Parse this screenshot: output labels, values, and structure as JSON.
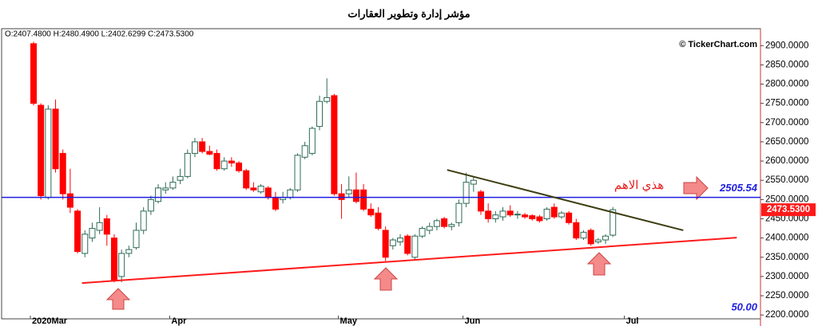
{
  "chart_data": {
    "type": "candlestick",
    "title": "مؤشر إدارة وتطوير العقارات",
    "ohlc_text": "O:2407.4800 H:2480.4900 L:2402.6299 C:2473.5300",
    "watermark": "© TickerChart.com",
    "annotation": "هذي الاهم",
    "indicator_label": "50.00",
    "up_color": "#2e6b57",
    "down_color": "#ff0000",
    "categories": [
      "2020Mar",
      null,
      null,
      null,
      null,
      null,
      null,
      null,
      null,
      null,
      null,
      null,
      null,
      null,
      null,
      null,
      null,
      null,
      null,
      "Apr",
      null,
      null,
      null,
      null,
      null,
      null,
      null,
      null,
      null,
      null,
      null,
      null,
      null,
      null,
      null,
      null,
      null,
      null,
      null,
      null,
      null,
      null,
      "May",
      null,
      null,
      null,
      null,
      null,
      null,
      null,
      null,
      null,
      null,
      null,
      null,
      null,
      null,
      null,
      null,
      "Jun",
      null,
      null,
      null,
      null,
      null,
      null,
      null,
      null,
      null,
      null,
      null,
      null,
      null,
      null,
      null,
      null,
      null,
      null,
      null,
      null,
      null,
      "Jul",
      null,
      null,
      null,
      null,
      null,
      null,
      null,
      null,
      null,
      null,
      null,
      null,
      null,
      null,
      null,
      null,
      null,
      null
    ],
    "open": [
      2905,
      2745,
      2505,
      2735,
      2620,
      2515,
      2470,
      2360,
      2400,
      2420,
      2450,
      2400,
      2300,
      2360,
      2375,
      2420,
      2470,
      2495,
      2525,
      2530,
      2550,
      2560,
      2620,
      2650,
      2625,
      2620,
      2580,
      2600,
      2595,
      2575,
      2530,
      2520,
      2530,
      2505,
      2500,
      2505,
      2525,
      2610,
      2620,
      2690,
      2755,
      2770,
      2515,
      2515,
      2525,
      2525,
      2475,
      2465,
      2420,
      2380,
      2390,
      2405,
      2350,
      2405,
      2420,
      2430,
      2450,
      2430,
      2440,
      2490,
      2540,
      2520,
      2470,
      2450,
      2455,
      2470,
      2460,
      2460,
      2458,
      2455,
      2450,
      2480,
      2455,
      2465,
      2440,
      2400,
      2420,
      2390,
      2395,
      2407.48,
      null,
      null,
      null,
      null,
      null,
      null,
      null,
      null,
      null,
      null,
      null,
      null,
      null,
      null,
      null,
      null,
      null,
      null,
      null,
      null
    ],
    "high": [
      2910,
      2750,
      2745,
      2760,
      2630,
      2580,
      2475,
      2420,
      2440,
      2480,
      2460,
      2410,
      2370,
      2380,
      2440,
      2480,
      2510,
      2540,
      2545,
      2560,
      2580,
      2630,
      2660,
      2660,
      2640,
      2630,
      2610,
      2610,
      2600,
      2580,
      2545,
      2540,
      2535,
      2520,
      2520,
      2530,
      2620,
      2650,
      2690,
      2770,
      2815,
      2775,
      2540,
      2560,
      2570,
      2540,
      2490,
      2480,
      2430,
      2400,
      2410,
      2410,
      2410,
      2430,
      2440,
      2450,
      2455,
      2440,
      2500,
      2570,
      2560,
      2525,
      2490,
      2470,
      2480,
      2485,
      2470,
      2465,
      2462,
      2460,
      2480,
      2490,
      2470,
      2470,
      2450,
      2420,
      2425,
      2400,
      2410,
      2480.49,
      null,
      null,
      null,
      null,
      null,
      null,
      null,
      null,
      null,
      null,
      null,
      null,
      null,
      null,
      null,
      null,
      null,
      null,
      null,
      null
    ],
    "low": [
      2745,
      2500,
      2500,
      2570,
      2500,
      2465,
      2360,
      2350,
      2390,
      2410,
      2380,
      2285,
      2285,
      2350,
      2370,
      2410,
      2460,
      2490,
      2515,
      2525,
      2540,
      2555,
      2610,
      2620,
      2615,
      2575,
      2575,
      2585,
      2570,
      2525,
      2520,
      2515,
      2500,
      2470,
      2490,
      2500,
      2520,
      2605,
      2615,
      2680,
      2750,
      2510,
      2450,
      2505,
      2490,
      2470,
      2455,
      2420,
      2340,
      2370,
      2380,
      2355,
      2345,
      2400,
      2410,
      2420,
      2425,
      2420,
      2430,
      2480,
      2520,
      2460,
      2440,
      2440,
      2445,
      2455,
      2450,
      2450,
      2445,
      2440,
      2445,
      2450,
      2450,
      2435,
      2395,
      2395,
      2380,
      2385,
      2385,
      2402.6299,
      null,
      null,
      null,
      null,
      null,
      null,
      null,
      null,
      null,
      null,
      null,
      null,
      null,
      null,
      null,
      null,
      null,
      null,
      null,
      null
    ],
    "close": [
      2750,
      2510,
      2735,
      2580,
      2515,
      2480,
      2365,
      2410,
      2425,
      2440,
      2410,
      2290,
      2360,
      2370,
      2420,
      2470,
      2500,
      2530,
      2530,
      2545,
      2560,
      2620,
      2650,
      2625,
      2618,
      2580,
      2600,
      2595,
      2575,
      2530,
      2525,
      2535,
      2505,
      2475,
      2505,
      2525,
      2615,
      2640,
      2685,
      2755,
      2765,
      2515,
      2500,
      2525,
      2495,
      2475,
      2460,
      2425,
      2350,
      2395,
      2400,
      2360,
      2405,
      2425,
      2430,
      2445,
      2430,
      2435,
      2490,
      2545,
      2550,
      2470,
      2450,
      2460,
      2470,
      2460,
      2462,
      2455,
      2450,
      2445,
      2475,
      2455,
      2465,
      2440,
      2400,
      2415,
      2385,
      2395,
      2405,
      2473.53,
      null,
      null,
      null,
      null,
      null,
      null,
      null,
      null,
      null,
      null,
      null,
      null,
      null,
      null,
      null,
      null,
      null,
      null,
      null,
      null
    ],
    "ylim": [
      2190,
      2944
    ],
    "yticks": [
      {
        "value": 2200,
        "label": "2200.0000"
      },
      {
        "value": 2250,
        "label": "2250.0000"
      },
      {
        "value": 2300,
        "label": "2300.0000"
      },
      {
        "value": 2350,
        "label": "2350.0000"
      },
      {
        "value": 2400,
        "label": "2400.0000"
      },
      {
        "value": 2450,
        "label": "2450.0000"
      },
      {
        "value": 2500,
        "label": "2500.0000"
      },
      {
        "value": 2550,
        "label": "2550.0000"
      },
      {
        "value": 2600,
        "label": "2600.0000"
      },
      {
        "value": 2650,
        "label": "2650.0000"
      },
      {
        "value": 2700,
        "label": "2700.0000"
      },
      {
        "value": 2750,
        "label": "2750.0000"
      },
      {
        "value": 2800,
        "label": "2800.0000"
      },
      {
        "value": 2850,
        "label": "2850.0000"
      },
      {
        "value": 2900,
        "label": "2900.0000"
      }
    ],
    "hline": {
      "value": 2505.54,
      "color": "#1f1fe0"
    },
    "last_price": {
      "value": 2473.53,
      "label": "2473.5300",
      "color": "#ff1a1a"
    },
    "trendlines": [
      {
        "color": "#ff1a1a",
        "from": [
          6.6,
          2283
        ],
        "to": [
          95.9,
          2401
        ]
      },
      {
        "color": "#3d3d10",
        "from": [
          56.4,
          2577
        ],
        "to": [
          88.6,
          2420
        ]
      }
    ]
  }
}
